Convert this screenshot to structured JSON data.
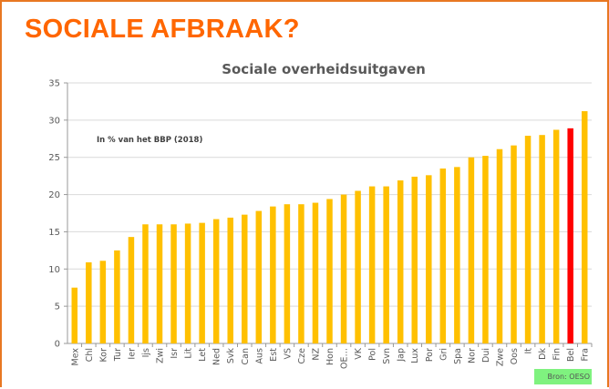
{
  "slide": {
    "title": "SOCIALE AFBRAAK?",
    "source": "Bron: OESO"
  },
  "colors": {
    "bar": "#ffc000",
    "highlight": "#ff0000",
    "title": "#ff6600",
    "frame": "#e87722"
  },
  "chart_data": {
    "type": "bar",
    "title": "Sociale overheidsuitgaven",
    "annotation": "In % van het BBP (2018)",
    "xlabel": "",
    "ylabel": "",
    "ylim": [
      0,
      35
    ],
    "yticks": [
      0,
      5,
      10,
      15,
      20,
      25,
      30,
      35
    ],
    "grid": true,
    "highlight_category": "Bel",
    "categories": [
      "Mex",
      "Chl",
      "Kor",
      "Tur",
      "Ier",
      "Ijs",
      "Zwi",
      "Isr",
      "Lit",
      "Let",
      "Ned",
      "Svk",
      "Can",
      "Aus",
      "Est",
      "VS",
      "Cze",
      "NZ",
      "Hon",
      "OE…",
      "VK",
      "Pol",
      "Svn",
      "Jap",
      "Lux",
      "Por",
      "Gri",
      "Spa",
      "Nor",
      "Dui",
      "Zwe",
      "Oos",
      "It",
      "Dk",
      "Fin",
      "Bel",
      "Fra"
    ],
    "values": [
      7.5,
      10.9,
      11.1,
      12.5,
      14.3,
      16.0,
      16.0,
      16.0,
      16.1,
      16.2,
      16.7,
      16.9,
      17.3,
      17.8,
      18.4,
      18.7,
      18.7,
      18.9,
      19.4,
      20.0,
      20.5,
      21.1,
      21.1,
      21.9,
      22.4,
      22.6,
      23.5,
      23.7,
      25.0,
      25.2,
      26.1,
      26.6,
      27.9,
      28.0,
      28.7,
      28.9,
      31.2
    ]
  }
}
